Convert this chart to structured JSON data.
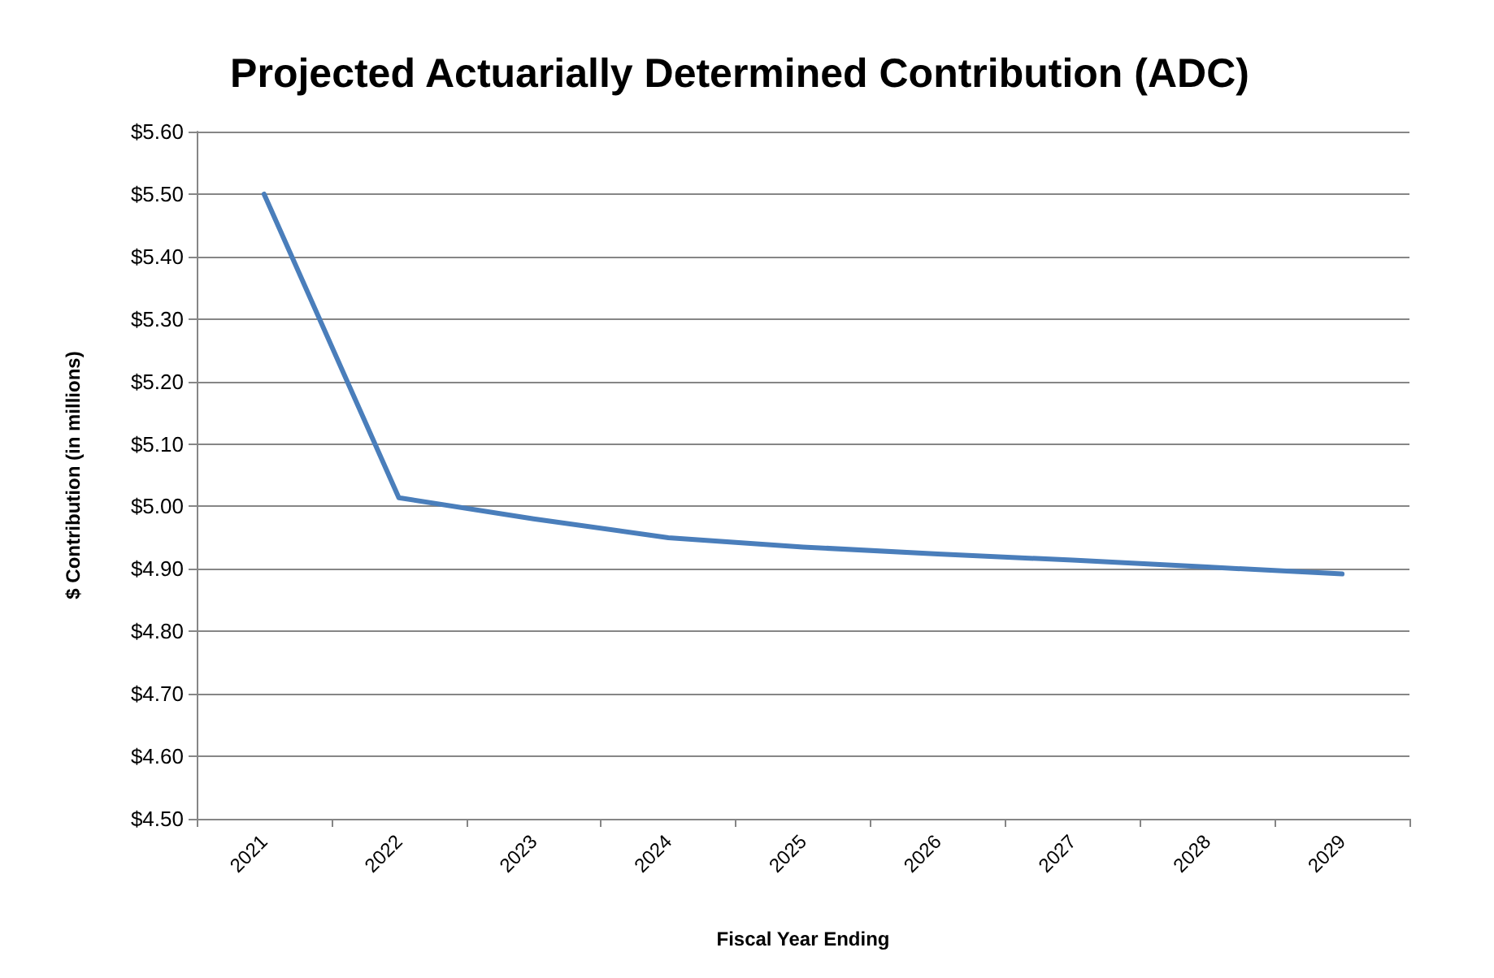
{
  "chart_data": {
    "type": "line",
    "title": "Projected Actuarially Determined Contribution (ADC)",
    "xlabel": "Fiscal Year Ending",
    "ylabel": "$ Contribution (in millions)",
    "categories": [
      "2021",
      "2022",
      "2023",
      "2024",
      "2025",
      "2026",
      "2027",
      "2028",
      "2029"
    ],
    "series": [
      {
        "color": "#4a7ebb",
        "values": [
          5.5,
          5.014,
          4.98,
          4.95,
          4.935,
          4.924,
          4.914,
          4.903,
          4.892
        ]
      }
    ],
    "ylim": [
      4.5,
      5.6
    ],
    "yticks": [
      {
        "value": 4.5,
        "label": "$4.50"
      },
      {
        "value": 4.6,
        "label": "$4.60"
      },
      {
        "value": 4.7,
        "label": "$4.70"
      },
      {
        "value": 4.8,
        "label": "$4.80"
      },
      {
        "value": 4.9,
        "label": "$4.90"
      },
      {
        "value": 5.0,
        "label": "$5.00"
      },
      {
        "value": 5.1,
        "label": "$5.10"
      },
      {
        "value": 5.2,
        "label": "$5.20"
      },
      {
        "value": 5.3,
        "label": "$5.30"
      },
      {
        "value": 5.4,
        "label": "$5.40"
      },
      {
        "value": 5.5,
        "label": "$5.50"
      },
      {
        "value": 5.6,
        "label": "$5.60"
      }
    ],
    "grid": "y",
    "marker": "none",
    "line_style": "solid"
  }
}
